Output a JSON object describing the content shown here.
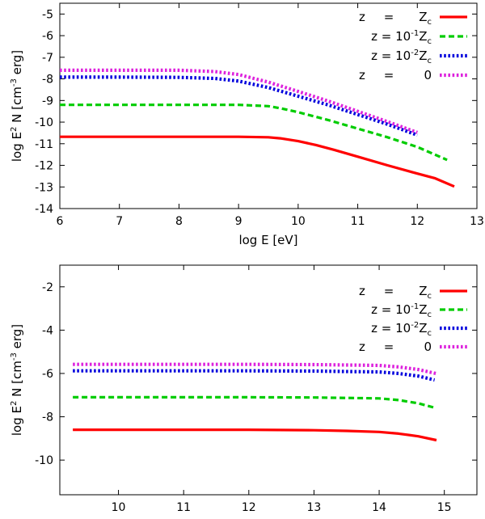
{
  "chart_data": [
    {
      "type": "line",
      "title": "",
      "xlabel": "log E [eV]",
      "ylabel": "log E2 N [cm-3 erg]",
      "xlim": [
        6,
        13
      ],
      "ylim": [
        -14,
        -4.5
      ],
      "xticks": [
        6,
        7,
        8,
        9,
        10,
        11,
        12,
        13
      ],
      "yticks": [
        -14,
        -13,
        -12,
        -11,
        -10,
        -9,
        -8,
        -7,
        -6,
        -5
      ],
      "legend_position": "top-right",
      "series": [
        {
          "name": "z = Zc",
          "legend": {
            "lhs": "z",
            "eq": "=",
            "rhs": "Z",
            "rhs_sub": "c"
          },
          "color": "#ff0000",
          "dash": "solid",
          "x": [
            6,
            7,
            8,
            9,
            9.5,
            9.7,
            10,
            10.3,
            10.6,
            11,
            11.5,
            12,
            12.3,
            12.62
          ],
          "y": [
            -10.68,
            -10.68,
            -10.68,
            -10.68,
            -10.7,
            -10.75,
            -10.88,
            -11.06,
            -11.28,
            -11.6,
            -12.0,
            -12.38,
            -12.6,
            -12.98
          ]
        },
        {
          "name": "z = 10^-1 Zc",
          "legend": {
            "lhs": "z = 10",
            "lhs_sup": "-1",
            "rhs": "Z",
            "rhs_sub": "c"
          },
          "color": "#00cc00",
          "dash": "dashed",
          "x": [
            6,
            7,
            8,
            9,
            9.5,
            9.7,
            10,
            10.5,
            11,
            11.5,
            12,
            12.5
          ],
          "y": [
            -9.2,
            -9.2,
            -9.2,
            -9.2,
            -9.26,
            -9.36,
            -9.54,
            -9.9,
            -10.3,
            -10.7,
            -11.15,
            -11.75
          ]
        },
        {
          "name": "z = 10^-2 Zc",
          "legend": {
            "lhs": "z = 10",
            "lhs_sup": "-2",
            "rhs": "Z",
            "rhs_sub": "c"
          },
          "color": "#0000dd",
          "dash": "dotted",
          "x": [
            6,
            7,
            8,
            8.6,
            9,
            9.5,
            10,
            10.5,
            11,
            11.5,
            12
          ],
          "y": [
            -7.92,
            -7.92,
            -7.93,
            -7.98,
            -8.1,
            -8.4,
            -8.8,
            -9.2,
            -9.65,
            -10.1,
            -10.6
          ]
        },
        {
          "name": "z = 0",
          "legend": {
            "lhs": "z",
            "eq": "=",
            "rhs": "0"
          },
          "color": "#dd22dd",
          "dash": "dotted",
          "x": [
            6,
            7,
            8,
            8.6,
            9,
            9.5,
            10,
            10.5,
            11,
            11.5,
            12
          ],
          "y": [
            -7.6,
            -7.6,
            -7.6,
            -7.66,
            -7.8,
            -8.15,
            -8.58,
            -9.02,
            -9.5,
            -9.98,
            -10.48
          ]
        }
      ]
    },
    {
      "type": "line",
      "title": "",
      "xlabel": "log E [eV]",
      "ylabel": "log E2 N [cm-3 erg]",
      "xlim": [
        9.1,
        15.5
      ],
      "ylim": [
        -11.6,
        -1
      ],
      "xticks": [
        10,
        11,
        12,
        13,
        14,
        15
      ],
      "yticks": [
        -10,
        -8,
        -6,
        -4,
        -2
      ],
      "legend_position": "top-right",
      "series": [
        {
          "name": "z = Zc",
          "legend": {
            "lhs": "z",
            "eq": "=",
            "rhs": "Z",
            "rhs_sub": "c"
          },
          "color": "#ff0000",
          "dash": "solid",
          "x": [
            9.3,
            10,
            11,
            12,
            13,
            13.5,
            14,
            14.3,
            14.6,
            14.88
          ],
          "y": [
            -8.6,
            -8.6,
            -8.6,
            -8.6,
            -8.62,
            -8.65,
            -8.7,
            -8.78,
            -8.9,
            -9.08
          ]
        },
        {
          "name": "z = 10^-1 Zc",
          "legend": {
            "lhs": "z = 10",
            "lhs_sup": "-1",
            "rhs": "Z",
            "rhs_sub": "c"
          },
          "color": "#00cc00",
          "dash": "dashed",
          "x": [
            9.3,
            10,
            11,
            12,
            13,
            14,
            14.3,
            14.6,
            14.85
          ],
          "y": [
            -7.1,
            -7.1,
            -7.1,
            -7.1,
            -7.11,
            -7.15,
            -7.23,
            -7.38,
            -7.58
          ]
        },
        {
          "name": "z = 10^-2 Zc",
          "legend": {
            "lhs": "z = 10",
            "lhs_sup": "-2",
            "rhs": "Z",
            "rhs_sub": "c"
          },
          "color": "#0000dd",
          "dash": "dotted",
          "x": [
            9.3,
            10,
            11,
            12,
            13,
            14,
            14.3,
            14.6,
            14.85
          ],
          "y": [
            -5.88,
            -5.88,
            -5.88,
            -5.88,
            -5.89,
            -5.93,
            -6.0,
            -6.12,
            -6.3
          ]
        },
        {
          "name": "z = 0",
          "legend": {
            "lhs": "z",
            "eq": "=",
            "rhs": "0"
          },
          "color": "#dd22dd",
          "dash": "dotted",
          "x": [
            9.3,
            10,
            11,
            12,
            13,
            14,
            14.3,
            14.6,
            14.9
          ],
          "y": [
            -5.58,
            -5.58,
            -5.58,
            -5.58,
            -5.59,
            -5.63,
            -5.7,
            -5.82,
            -6.02
          ]
        }
      ]
    }
  ]
}
